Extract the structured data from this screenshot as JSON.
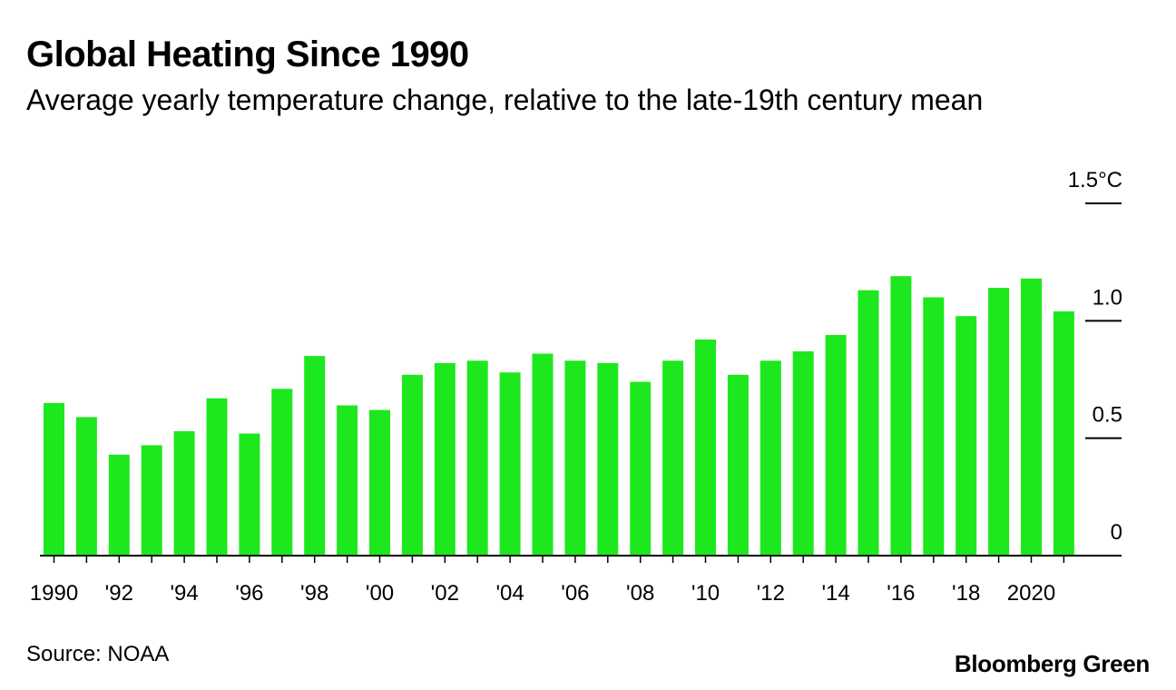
{
  "header": {
    "title": "Global Heating Since 1990",
    "subtitle": "Average yearly temperature change, relative to the late-19th century mean"
  },
  "footer": {
    "source": "Source: NOAA",
    "brand": "Bloomberg Green"
  },
  "colors": {
    "bar": "#1DE81D",
    "axis": "#000000",
    "text": "#000000"
  },
  "chart_data": {
    "type": "bar",
    "title": "Global Heating Since 1990",
    "subtitle": "Average yearly temperature change, relative to the late-19th century mean",
    "xlabel": "",
    "ylabel": "",
    "ylim": [
      0,
      1.5
    ],
    "yticks": [
      0,
      0.5,
      1.0,
      1.5
    ],
    "ytick_labels": [
      "0",
      "0.5",
      "1.0",
      "1.5°C"
    ],
    "grid": false,
    "legend": "none",
    "categories": [
      1990,
      1991,
      1992,
      1993,
      1994,
      1995,
      1996,
      1997,
      1998,
      1999,
      2000,
      2001,
      2002,
      2003,
      2004,
      2005,
      2006,
      2007,
      2008,
      2009,
      2010,
      2011,
      2012,
      2013,
      2014,
      2015,
      2016,
      2017,
      2018,
      2019,
      2020,
      2021
    ],
    "values": [
      0.65,
      0.59,
      0.43,
      0.47,
      0.53,
      0.67,
      0.52,
      0.71,
      0.85,
      0.64,
      0.62,
      0.77,
      0.82,
      0.83,
      0.78,
      0.86,
      0.83,
      0.82,
      0.74,
      0.83,
      0.92,
      0.77,
      0.83,
      0.87,
      0.94,
      1.13,
      1.19,
      1.1,
      1.02,
      1.14,
      1.18,
      1.04
    ],
    "xtick_labels": [
      {
        "year": 1990,
        "label": "1990"
      },
      {
        "year": 1992,
        "label": "'92"
      },
      {
        "year": 1994,
        "label": "'94"
      },
      {
        "year": 1996,
        "label": "'96"
      },
      {
        "year": 1998,
        "label": "'98"
      },
      {
        "year": 2000,
        "label": "'00"
      },
      {
        "year": 2002,
        "label": "'02"
      },
      {
        "year": 2004,
        "label": "'04"
      },
      {
        "year": 2006,
        "label": "'06"
      },
      {
        "year": 2008,
        "label": "'08"
      },
      {
        "year": 2010,
        "label": "'10"
      },
      {
        "year": 2012,
        "label": "'12"
      },
      {
        "year": 2014,
        "label": "'14"
      },
      {
        "year": 2016,
        "label": "'16"
      },
      {
        "year": 2018,
        "label": "'18"
      },
      {
        "year": 2020,
        "label": "2020"
      }
    ],
    "source": "Source: NOAA"
  }
}
